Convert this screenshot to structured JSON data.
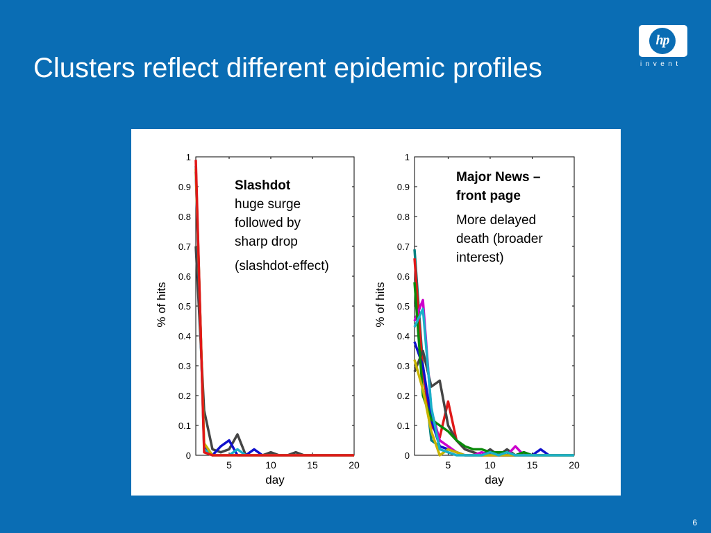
{
  "slide": {
    "title": "Clusters reflect different epidemic profiles",
    "page_number": "6",
    "background_color": "#0a6db4"
  },
  "logo": {
    "mark_text": "hp",
    "tagline": "invent",
    "icon": "hp-logo-icon"
  },
  "annotations": {
    "left": {
      "heading": "Slashdot",
      "body": "huge surge followed by sharp  drop",
      "note": "(slashdot-effect)"
    },
    "right": {
      "heading": "Major News – front page",
      "body": "More delayed death (broader interest)"
    }
  },
  "chart_data": [
    {
      "type": "line",
      "title": "",
      "xlabel": "day",
      "ylabel": "% of hits",
      "xlim": [
        1,
        20
      ],
      "ylim": [
        0,
        1
      ],
      "xticks": [
        5,
        10,
        15,
        20
      ],
      "yticks": [
        0,
        0.1,
        0.2,
        0.3,
        0.4,
        0.5,
        0.6,
        0.7,
        0.8,
        0.9,
        1
      ],
      "ytick_labels": [
        "0",
        "0.1",
        "0.2",
        "0.3",
        "0.4",
        "0.5",
        "0.6",
        "0.7",
        "0.8",
        "0.9",
        "1"
      ],
      "grid": false,
      "series": [
        {
          "color": "#444444",
          "points": [
            [
              1,
              0.7
            ],
            [
              2,
              0.15
            ],
            [
              3,
              0.02
            ],
            [
              4,
              0.01
            ],
            [
              5,
              0.02
            ],
            [
              6,
              0.07
            ],
            [
              7,
              0.0
            ],
            [
              8,
              0.0
            ],
            [
              9,
              0.0
            ],
            [
              10,
              0.01
            ],
            [
              11,
              0.0
            ],
            [
              12,
              0.0
            ],
            [
              13,
              0.01
            ],
            [
              14,
              0.0
            ],
            [
              15,
              0.0
            ],
            [
              16,
              0.0
            ],
            [
              17,
              0.0
            ],
            [
              18,
              0.0
            ],
            [
              19,
              0.0
            ],
            [
              20,
              0.0
            ]
          ]
        },
        {
          "color": "#1010cc",
          "points": [
            [
              1,
              0.95
            ],
            [
              2,
              0.03
            ],
            [
              3,
              0.0
            ],
            [
              4,
              0.03
            ],
            [
              5,
              0.05
            ],
            [
              6,
              0.0
            ],
            [
              7,
              0.0
            ],
            [
              8,
              0.02
            ],
            [
              9,
              0.0
            ],
            [
              10,
              0.0
            ],
            [
              11,
              0.0
            ],
            [
              12,
              0.0
            ],
            [
              13,
              0.0
            ],
            [
              14,
              0.0
            ],
            [
              15,
              0.0
            ],
            [
              16,
              0.0
            ],
            [
              17,
              0.0
            ],
            [
              18,
              0.0
            ],
            [
              19,
              0.0
            ],
            [
              20,
              0.0
            ]
          ]
        },
        {
          "color": "#1ab0c8",
          "points": [
            [
              1,
              0.97
            ],
            [
              2,
              0.02
            ],
            [
              3,
              0.0
            ],
            [
              4,
              0.0
            ],
            [
              5,
              0.0
            ],
            [
              6,
              0.02
            ],
            [
              7,
              0.0
            ],
            [
              8,
              0.0
            ],
            [
              9,
              0.0
            ],
            [
              10,
              0.0
            ],
            [
              11,
              0.0
            ],
            [
              12,
              0.0
            ],
            [
              13,
              0.0
            ],
            [
              14,
              0.0
            ],
            [
              15,
              0.0
            ],
            [
              16,
              0.0
            ],
            [
              17,
              0.0
            ],
            [
              18,
              0.0
            ],
            [
              19,
              0.0
            ],
            [
              20,
              0.0
            ]
          ]
        },
        {
          "color": "#c8b400",
          "points": [
            [
              1,
              0.96
            ],
            [
              2,
              0.04
            ],
            [
              3,
              0.0
            ],
            [
              4,
              0.0
            ],
            [
              5,
              0.0
            ],
            [
              6,
              0.0
            ],
            [
              7,
              0.0
            ],
            [
              8,
              0.0
            ],
            [
              9,
              0.0
            ],
            [
              10,
              0.0
            ],
            [
              11,
              0.0
            ],
            [
              12,
              0.0
            ],
            [
              13,
              0.0
            ],
            [
              14,
              0.0
            ],
            [
              15,
              0.0
            ],
            [
              16,
              0.0
            ],
            [
              17,
              0.0
            ],
            [
              18,
              0.0
            ],
            [
              19,
              0.0
            ],
            [
              20,
              0.0
            ]
          ]
        },
        {
          "color": "#e01818",
          "points": [
            [
              1,
              0.99
            ],
            [
              2,
              0.01
            ],
            [
              3,
              0.0
            ],
            [
              4,
              0.0
            ],
            [
              5,
              0.0
            ],
            [
              6,
              0.0
            ],
            [
              7,
              0.0
            ],
            [
              8,
              0.0
            ],
            [
              9,
              0.0
            ],
            [
              10,
              0.0
            ],
            [
              11,
              0.0
            ],
            [
              12,
              0.0
            ],
            [
              13,
              0.0
            ],
            [
              14,
              0.0
            ],
            [
              15,
              0.0
            ],
            [
              16,
              0.0
            ],
            [
              17,
              0.0
            ],
            [
              18,
              0.0
            ],
            [
              19,
              0.0
            ],
            [
              20,
              0.0
            ]
          ]
        }
      ]
    },
    {
      "type": "line",
      "title": "",
      "xlabel": "day",
      "ylabel": "% of hits",
      "xlim": [
        1,
        20
      ],
      "ylim": [
        0,
        1
      ],
      "xticks": [
        5,
        10,
        15,
        20
      ],
      "yticks": [
        0,
        0.1,
        0.2,
        0.3,
        0.4,
        0.5,
        0.6,
        0.7,
        0.8,
        0.9,
        1
      ],
      "ytick_labels": [
        "0",
        "0.1",
        "0.2",
        "0.3",
        "0.4",
        "0.5",
        "0.6",
        "0.7",
        "0.8",
        "0.9",
        "1"
      ],
      "grid": false,
      "series": [
        {
          "color": "#008080",
          "points": [
            [
              1,
              0.69
            ],
            [
              2,
              0.3
            ],
            [
              3,
              0.05
            ],
            [
              4,
              0.03
            ],
            [
              5,
              0.02
            ],
            [
              6,
              0.01
            ],
            [
              7,
              0.0
            ],
            [
              8,
              0.0
            ],
            [
              9,
              0.0
            ],
            [
              10,
              0.0
            ],
            [
              11,
              0.0
            ],
            [
              12,
              0.0
            ],
            [
              13,
              0.0
            ],
            [
              14,
              0.0
            ],
            [
              15,
              0.0
            ],
            [
              16,
              0.0
            ],
            [
              17,
              0.0
            ],
            [
              18,
              0.0
            ],
            [
              19,
              0.0
            ],
            [
              20,
              0.0
            ]
          ]
        },
        {
          "color": "#e01818",
          "points": [
            [
              1,
              0.66
            ],
            [
              2,
              0.28
            ],
            [
              3,
              0.1
            ],
            [
              4,
              0.06
            ],
            [
              5,
              0.18
            ],
            [
              6,
              0.05
            ],
            [
              7,
              0.02
            ],
            [
              8,
              0.01
            ],
            [
              9,
              0.0
            ],
            [
              10,
              0.0
            ],
            [
              11,
              0.0
            ],
            [
              12,
              0.0
            ],
            [
              13,
              0.0
            ],
            [
              14,
              0.0
            ],
            [
              15,
              0.0
            ],
            [
              16,
              0.0
            ],
            [
              17,
              0.0
            ],
            [
              18,
              0.0
            ],
            [
              19,
              0.0
            ],
            [
              20,
              0.0
            ]
          ]
        },
        {
          "color": "#444444",
          "points": [
            [
              1,
              0.28
            ],
            [
              2,
              0.35
            ],
            [
              3,
              0.23
            ],
            [
              4,
              0.25
            ],
            [
              5,
              0.1
            ],
            [
              6,
              0.05
            ],
            [
              7,
              0.02
            ],
            [
              8,
              0.01
            ],
            [
              9,
              0.0
            ],
            [
              10,
              0.02
            ],
            [
              11,
              0.0
            ],
            [
              12,
              0.02
            ],
            [
              13,
              0.0
            ],
            [
              14,
              0.0
            ],
            [
              15,
              0.0
            ],
            [
              16,
              0.0
            ],
            [
              17,
              0.0
            ],
            [
              18,
              0.0
            ],
            [
              19,
              0.0
            ],
            [
              20,
              0.0
            ]
          ]
        },
        {
          "color": "#cc00cc",
          "points": [
            [
              1,
              0.45
            ],
            [
              2,
              0.52
            ],
            [
              3,
              0.15
            ],
            [
              4,
              0.05
            ],
            [
              5,
              0.03
            ],
            [
              6,
              0.01
            ],
            [
              7,
              0.0
            ],
            [
              8,
              0.0
            ],
            [
              9,
              0.01
            ],
            [
              10,
              0.0
            ],
            [
              11,
              0.0
            ],
            [
              12,
              0.0
            ],
            [
              13,
              0.03
            ],
            [
              14,
              0.0
            ],
            [
              15,
              0.0
            ],
            [
              16,
              0.0
            ],
            [
              17,
              0.0
            ],
            [
              18,
              0.0
            ],
            [
              19,
              0.0
            ],
            [
              20,
              0.0
            ]
          ]
        },
        {
          "color": "#1010cc",
          "points": [
            [
              1,
              0.38
            ],
            [
              2,
              0.3
            ],
            [
              3,
              0.12
            ],
            [
              4,
              0.03
            ],
            [
              5,
              0.02
            ],
            [
              6,
              0.01
            ],
            [
              7,
              0.0
            ],
            [
              8,
              0.0
            ],
            [
              9,
              0.0
            ],
            [
              10,
              0.01
            ],
            [
              11,
              0.0
            ],
            [
              12,
              0.0
            ],
            [
              13,
              0.0
            ],
            [
              14,
              0.01
            ],
            [
              15,
              0.0
            ],
            [
              16,
              0.02
            ],
            [
              17,
              0.0
            ],
            [
              18,
              0.0
            ],
            [
              19,
              0.0
            ],
            [
              20,
              0.0
            ]
          ]
        },
        {
          "color": "#0a8a0a",
          "points": [
            [
              1,
              0.58
            ],
            [
              2,
              0.2
            ],
            [
              3,
              0.12
            ],
            [
              4,
              0.1
            ],
            [
              5,
              0.08
            ],
            [
              6,
              0.05
            ],
            [
              7,
              0.03
            ],
            [
              8,
              0.02
            ],
            [
              9,
              0.02
            ],
            [
              10,
              0.01
            ],
            [
              11,
              0.01
            ],
            [
              12,
              0.01
            ],
            [
              13,
              0.0
            ],
            [
              14,
              0.01
            ],
            [
              15,
              0.0
            ],
            [
              16,
              0.0
            ],
            [
              17,
              0.0
            ],
            [
              18,
              0.0
            ],
            [
              19,
              0.0
            ],
            [
              20,
              0.0
            ]
          ]
        },
        {
          "color": "#c8b400",
          "points": [
            [
              1,
              0.32
            ],
            [
              2,
              0.22
            ],
            [
              3,
              0.08
            ],
            [
              4,
              0.0
            ],
            [
              5,
              0.02
            ],
            [
              6,
              0.01
            ],
            [
              7,
              0.0
            ],
            [
              8,
              0.0
            ],
            [
              9,
              0.0
            ],
            [
              10,
              0.0
            ],
            [
              11,
              0.0
            ],
            [
              12,
              0.0
            ],
            [
              13,
              0.0
            ],
            [
              14,
              0.0
            ],
            [
              15,
              0.0
            ],
            [
              16,
              0.0
            ],
            [
              17,
              0.0
            ],
            [
              18,
              0.0
            ],
            [
              19,
              0.0
            ],
            [
              20,
              0.0
            ]
          ]
        },
        {
          "color": "#1ab0c8",
          "points": [
            [
              1,
              0.43
            ],
            [
              2,
              0.49
            ],
            [
              3,
              0.16
            ],
            [
              4,
              0.02
            ],
            [
              5,
              0.01
            ],
            [
              6,
              0.0
            ],
            [
              7,
              0.0
            ],
            [
              8,
              0.0
            ],
            [
              9,
              0.0
            ],
            [
              10,
              0.01
            ],
            [
              11,
              0.0
            ],
            [
              12,
              0.01
            ],
            [
              13,
              0.0
            ],
            [
              14,
              0.0
            ],
            [
              15,
              0.0
            ],
            [
              16,
              0.0
            ],
            [
              17,
              0.0
            ],
            [
              18,
              0.0
            ],
            [
              19,
              0.0
            ],
            [
              20,
              0.0
            ]
          ]
        }
      ]
    }
  ]
}
